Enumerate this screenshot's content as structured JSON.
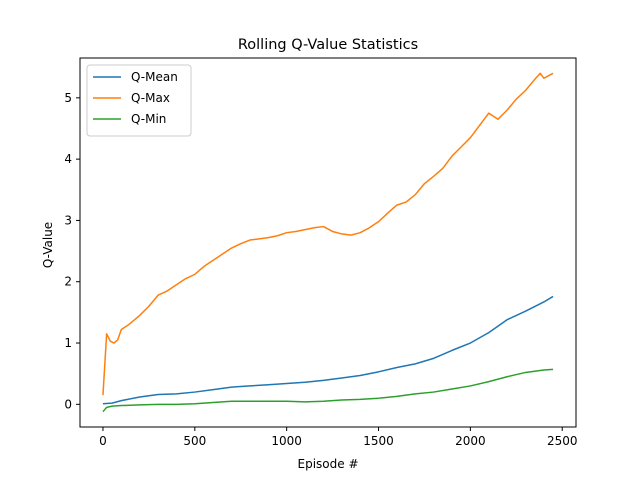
{
  "chart_data": {
    "type": "line",
    "title": "Rolling Q-Value Statistics",
    "xlabel": "Episode #",
    "ylabel": "Q-Value",
    "xlim": [
      -125,
      2575
    ],
    "ylim": [
      -0.37,
      5.65
    ],
    "xticks": [
      0,
      500,
      1000,
      1500,
      2000,
      2500
    ],
    "yticks": [
      0,
      1,
      2,
      3,
      4,
      5
    ],
    "grid": false,
    "legend_position": "top-left",
    "series": [
      {
        "name": "Q-Mean",
        "color": "#1f77b4",
        "x": [
          0,
          50,
          100,
          200,
          300,
          400,
          500,
          600,
          700,
          800,
          900,
          1000,
          1100,
          1200,
          1300,
          1400,
          1500,
          1600,
          1700,
          1800,
          1900,
          2000,
          2100,
          2200,
          2300,
          2400,
          2450
        ],
        "y": [
          0.01,
          0.02,
          0.06,
          0.12,
          0.16,
          0.17,
          0.2,
          0.24,
          0.28,
          0.3,
          0.32,
          0.34,
          0.36,
          0.39,
          0.43,
          0.47,
          0.53,
          0.6,
          0.66,
          0.75,
          0.88,
          1.0,
          1.17,
          1.38,
          1.52,
          1.67,
          1.76
        ]
      },
      {
        "name": "Q-Max",
        "color": "#ff7f0e",
        "x": [
          0,
          20,
          40,
          60,
          80,
          100,
          140,
          200,
          250,
          300,
          350,
          400,
          450,
          500,
          550,
          600,
          650,
          700,
          750,
          800,
          850,
          900,
          950,
          1000,
          1050,
          1100,
          1150,
          1200,
          1250,
          1300,
          1350,
          1400,
          1450,
          1500,
          1550,
          1600,
          1650,
          1700,
          1750,
          1800,
          1850,
          1900,
          1950,
          2000,
          2050,
          2100,
          2150,
          2200,
          2250,
          2300,
          2350,
          2380,
          2400,
          2450
        ],
        "y": [
          0.15,
          1.15,
          1.03,
          1.0,
          1.05,
          1.22,
          1.3,
          1.45,
          1.6,
          1.78,
          1.85,
          1.95,
          2.05,
          2.12,
          2.25,
          2.35,
          2.45,
          2.55,
          2.62,
          2.68,
          2.7,
          2.72,
          2.75,
          2.8,
          2.82,
          2.85,
          2.88,
          2.9,
          2.82,
          2.78,
          2.76,
          2.8,
          2.88,
          2.98,
          3.12,
          3.25,
          3.3,
          3.42,
          3.6,
          3.72,
          3.85,
          4.05,
          4.2,
          4.35,
          4.55,
          4.75,
          4.65,
          4.8,
          4.98,
          5.12,
          5.3,
          5.4,
          5.32,
          5.4
        ]
      },
      {
        "name": "Q-Min",
        "color": "#2ca02c",
        "x": [
          0,
          20,
          50,
          100,
          200,
          300,
          400,
          500,
          600,
          700,
          800,
          900,
          1000,
          1100,
          1200,
          1300,
          1400,
          1500,
          1600,
          1700,
          1800,
          1900,
          2000,
          2100,
          2200,
          2300,
          2400,
          2450
        ],
        "y": [
          -0.12,
          -0.05,
          -0.03,
          -0.02,
          -0.01,
          0.0,
          0.0,
          0.01,
          0.03,
          0.05,
          0.05,
          0.05,
          0.05,
          0.04,
          0.05,
          0.07,
          0.08,
          0.1,
          0.13,
          0.17,
          0.2,
          0.25,
          0.3,
          0.37,
          0.45,
          0.52,
          0.56,
          0.57
        ]
      }
    ]
  }
}
